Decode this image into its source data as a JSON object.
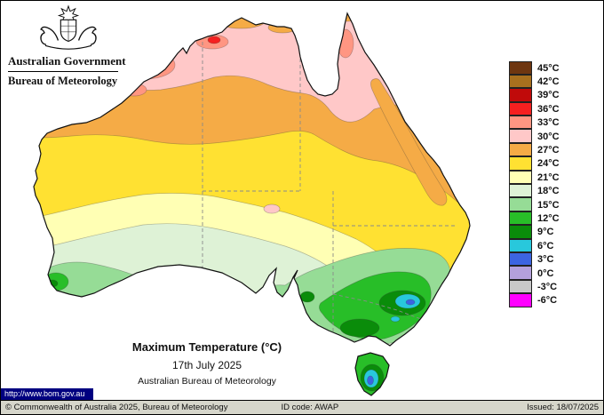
{
  "header": {
    "gov_label": "Australian Government",
    "bureau_label": "Bureau of Meteorology"
  },
  "map": {
    "title": "Maximum Temperature (°C)",
    "date": "17th July 2025",
    "org": "Australian Bureau of Meteorology",
    "url": "http://www.bom.gov.au"
  },
  "legend": {
    "units": "°C",
    "entries": [
      {
        "label": "45°C",
        "color": "#6e3610"
      },
      {
        "label": "42°C",
        "color": "#a8701e"
      },
      {
        "label": "39°C",
        "color": "#c00a0a"
      },
      {
        "label": "36°C",
        "color": "#f52020"
      },
      {
        "label": "33°C",
        "color": "#ff9682"
      },
      {
        "label": "30°C",
        "color": "#ffc8c8"
      },
      {
        "label": "27°C",
        "color": "#f5ab46"
      },
      {
        "label": "24°C",
        "color": "#ffe132"
      },
      {
        "label": "21°C",
        "color": "#ffffb4"
      },
      {
        "label": "18°C",
        "color": "#def2d6"
      },
      {
        "label": "15°C",
        "color": "#96dc96"
      },
      {
        "label": "12°C",
        "color": "#28be28"
      },
      {
        "label": "9°C",
        "color": "#0a8c0a"
      },
      {
        "label": "6°C",
        "color": "#28c8dc"
      },
      {
        "label": "3°C",
        "color": "#3c64e1"
      },
      {
        "label": "0°C",
        "color": "#b4a0dc"
      },
      {
        "label": "-3°C",
        "color": "#c8c8c8"
      },
      {
        "label": "-6°C",
        "color": "#ff00ff"
      }
    ]
  },
  "footer": {
    "copyright": "© Commonwealth of Australia 2025, Bureau of Meteorology",
    "id_code": "ID code: AWAP",
    "issued": "Issued: 18/07/2025"
  }
}
